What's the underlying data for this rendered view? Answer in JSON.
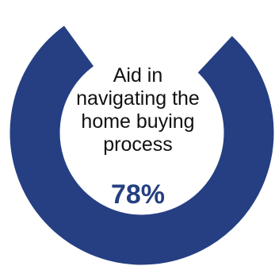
{
  "colors": {
    "ring": "#253f82",
    "value_text": "#253f82",
    "label_text": "#111111",
    "background": "#ffffff"
  },
  "chart_data": {
    "type": "pie",
    "style": "donut",
    "title": "",
    "label_lines": [
      "Aid in",
      "navigating the",
      "home buying",
      "process"
    ],
    "value": 78,
    "value_label": "78%",
    "max": 100,
    "series": [
      {
        "name": "",
        "value": 78
      }
    ]
  }
}
